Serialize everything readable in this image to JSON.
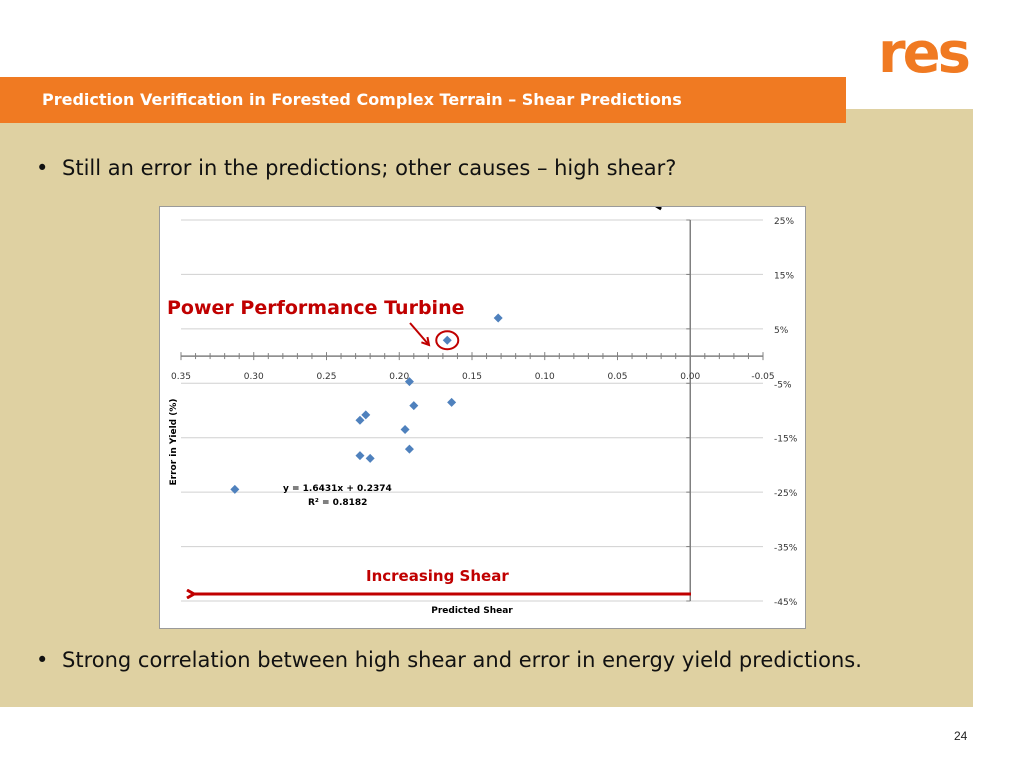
{
  "slide": {
    "title": "Prediction Verification in Forested Complex Terrain – Shear Predictions",
    "bullet_1": "Still an error in the predictions; other causes – high shear?",
    "bullet_2": "Strong correlation between high shear and error in energy yield predictions.",
    "bullet_marker": "•",
    "page_number": "24"
  },
  "logo": {
    "text": "res",
    "color": "#f07a22"
  },
  "colors": {
    "accent": "#f07a22",
    "panel": "#dfd1a2",
    "series": "#4f81bd",
    "annotation": "#c00000"
  },
  "chart_data": {
    "type": "scatter",
    "xlabel": "Predicted Shear",
    "ylabel": "Error in Yield (%)",
    "x_reversed": true,
    "xlim": [
      -0.05,
      0.35
    ],
    "ylim": [
      -45,
      25
    ],
    "x_ticks": [
      "0.35",
      "0.30",
      "0.25",
      "0.20",
      "0.15",
      "0.10",
      "0.05",
      "0.00",
      "-0.05"
    ],
    "y_ticks": [
      "25%",
      "15%",
      "5%",
      "-5%",
      "-15%",
      "-25%",
      "-35%",
      "-45%"
    ],
    "y_tick_values": [
      25,
      15,
      5,
      -5,
      -15,
      -25,
      -35,
      -45
    ],
    "x_tick_values": [
      0.35,
      0.3,
      0.25,
      0.2,
      0.15,
      0.1,
      0.05,
      0.0,
      -0.05
    ],
    "grid": "horizontal",
    "series": [
      {
        "points": [
          [
            0.313,
            -24.5
          ],
          [
            0.227,
            -18.3
          ],
          [
            0.223,
            -10.8
          ],
          [
            0.227,
            -11.8
          ],
          [
            0.22,
            -18.8
          ],
          [
            0.193,
            -17.1
          ],
          [
            0.196,
            -13.5
          ],
          [
            0.19,
            -9.1
          ],
          [
            0.164,
            -8.5
          ],
          [
            0.167,
            2.9
          ],
          [
            0.132,
            7.0
          ],
          [
            0.193,
            -4.7
          ]
        ]
      }
    ],
    "trendline": {
      "slope": 1.6431,
      "intercept": 0.2374,
      "x_range": [
        0.02,
        0.313
      ]
    },
    "equation_text": "y = 1.6431x + 0.2374",
    "r2_text": "R² = 0.8182",
    "highlight_point": [
      0.167,
      2.9
    ],
    "annotations": {
      "turbine_label": "Power Performance Turbine",
      "shear_label": "Increasing Shear"
    }
  }
}
